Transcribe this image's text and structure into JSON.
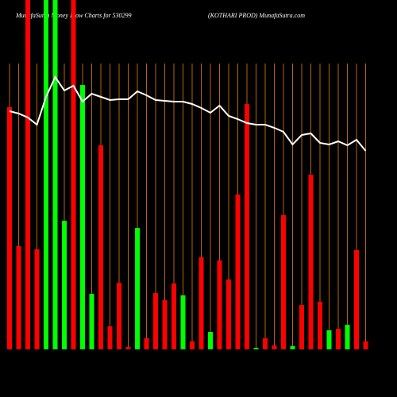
{
  "chart_data": {
    "type": "bar",
    "title": "MunafaSutra Money Flow Charts for 530299",
    "subtitle": "(KOTHARI PROD) MunafaSutra.com",
    "categories": [
      null,
      null,
      null,
      null,
      null,
      null,
      null,
      null,
      null,
      null,
      null,
      null,
      null,
      null,
      null,
      null,
      null,
      null,
      null,
      null,
      null,
      null,
      null,
      null,
      null,
      null,
      null,
      null,
      null,
      null,
      null,
      null,
      null,
      null,
      null,
      null,
      null,
      null,
      null,
      null
    ],
    "series": [
      {
        "type": "bar",
        "values": [
          305,
          130,
          440,
          126,
          440,
          440,
          162,
          440,
          333,
          70,
          257,
          29,
          84,
          3,
          153,
          14,
          71,
          62,
          83,
          68,
          10,
          116,
          22,
          112,
          88,
          195,
          309,
          2,
          14,
          5,
          169,
          4,
          56,
          220,
          60,
          24,
          26,
          31,
          125,
          10
        ],
        "colors": [
          "#ff0000",
          "#ff0000",
          "#ff0000",
          "#ff0000",
          "#00ff00",
          "#00ff00",
          "#00ff00",
          "#ff0000",
          "#00ff00",
          "#00ff00",
          "#ff0000",
          "#ff0000",
          "#ff0000",
          "#ff0000",
          "#00ff00",
          "#ff0000",
          "#ff0000",
          "#ff0000",
          "#ff0000",
          "#00ff00",
          "#ff0000",
          "#ff0000",
          "#00ff00",
          "#ff0000",
          "#ff0000",
          "#ff0000",
          "#ff0000",
          "#00ff00",
          "#ff0000",
          "#ff0000",
          "#ff0000",
          "#00ff00",
          "#ff0000",
          "#ff0000",
          "#ff0000",
          "#00ff00",
          "#ff0000",
          "#00ff00",
          "#ff0000",
          "#ff0000"
        ]
      },
      {
        "type": "line",
        "color": "#ffffff",
        "values": [
          300,
          297,
          292,
          283,
          318,
          343,
          326,
          332,
          312,
          322,
          318,
          314,
          315,
          315,
          325,
          320,
          314,
          313,
          312,
          312,
          309,
          304,
          298,
          307,
          294,
          290,
          285,
          283,
          283,
          279,
          274,
          258,
          270,
          272,
          260,
          258,
          262,
          257,
          264,
          250
        ]
      }
    ],
    "ylim": [
      0,
      440
    ],
    "grid_color": "#b8650a",
    "background": "#000000"
  }
}
